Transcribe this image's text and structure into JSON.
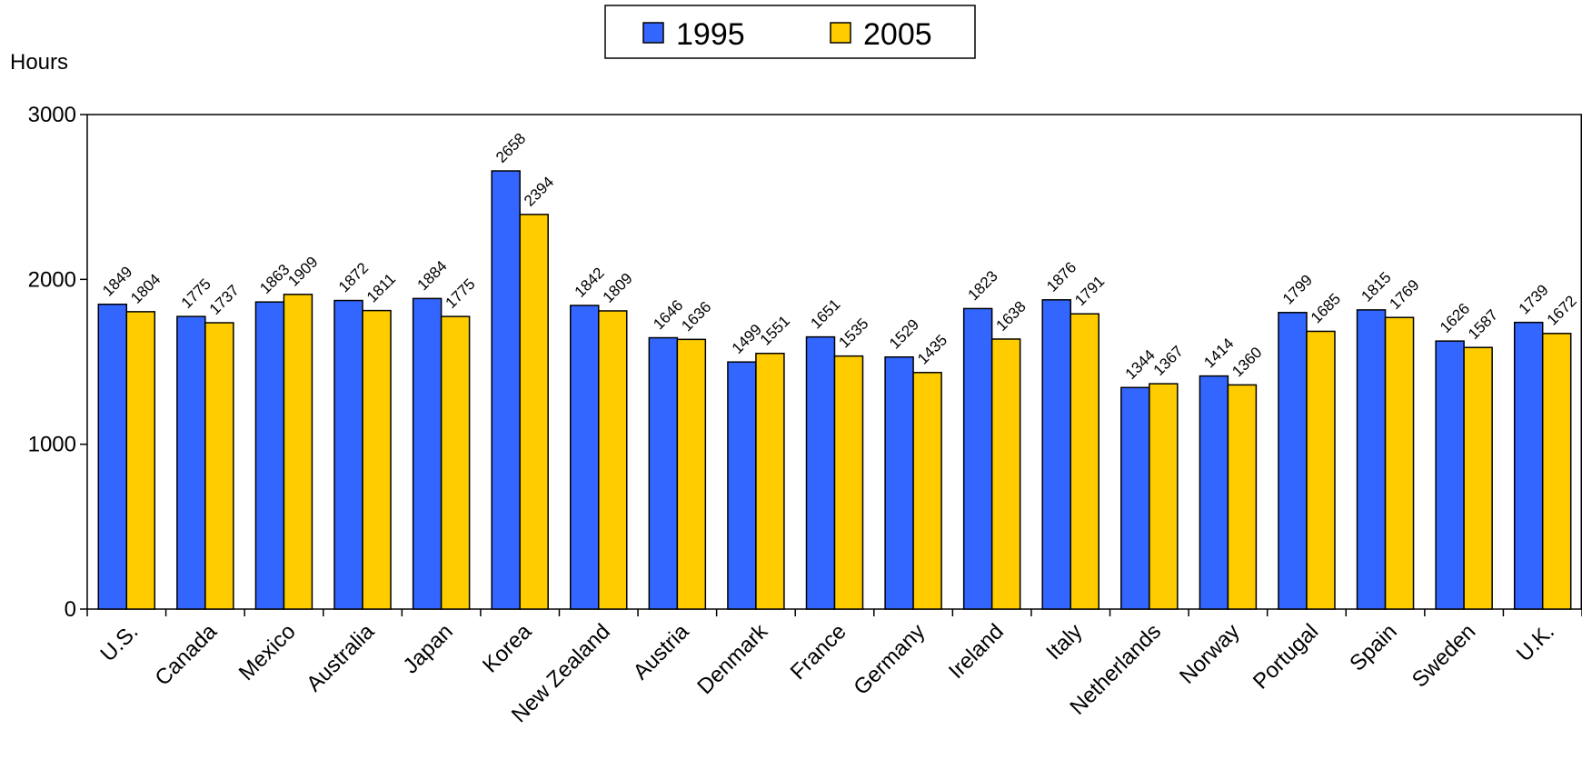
{
  "chart_data": {
    "type": "bar",
    "title": "",
    "xlabel": "",
    "ylabel": "Hours",
    "ylim": [
      0,
      3000
    ],
    "yticks": [
      0,
      1000,
      2000,
      3000
    ],
    "grid": false,
    "legend_position": "top-center",
    "categories": [
      "U.S.",
      "Canada",
      "Mexico",
      "Australia",
      "Japan",
      "Korea",
      "New Zealand",
      "Austria",
      "Denmark",
      "France",
      "Germany",
      "Ireland",
      "Italy",
      "Netherlands",
      "Norway",
      "Portugal",
      "Spain",
      "Sweden",
      "U.K."
    ],
    "series": [
      {
        "name": "1995",
        "color": "#3366FF",
        "values": [
          1849,
          1775,
          1863,
          1872,
          1884,
          2658,
          1842,
          1646,
          1499,
          1651,
          1529,
          1823,
          1876,
          1344,
          1414,
          1799,
          1815,
          1626,
          1739
        ]
      },
      {
        "name": "2005",
        "color": "#FFCC00",
        "values": [
          1804,
          1737,
          1909,
          1811,
          1775,
          2394,
          1809,
          1636,
          1551,
          1535,
          1435,
          1638,
          1791,
          1367,
          1360,
          1685,
          1769,
          1587,
          1672
        ]
      }
    ]
  }
}
